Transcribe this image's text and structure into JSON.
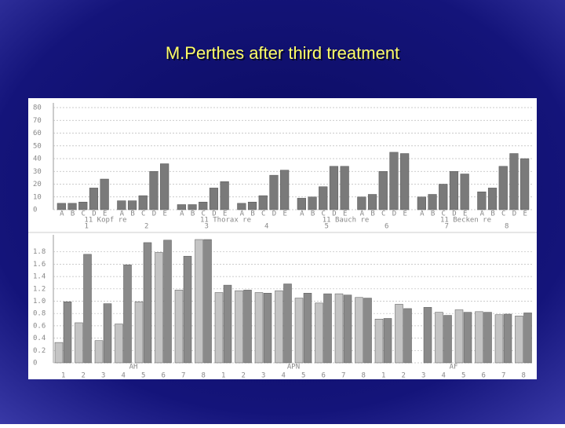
{
  "title": "M.Perthes after third treatment",
  "chart_data": [
    {
      "type": "bar",
      "bar_labels": [
        "A",
        "B",
        "C",
        "D",
        "E"
      ],
      "group_labels": [
        "1",
        "2",
        "3",
        "4",
        "5",
        "6",
        "7",
        "8"
      ],
      "region_labels": [
        "11 Kopf re",
        "11 Thorax re",
        "11 Bauch re",
        "11 Becken re"
      ],
      "color": "#7a7a7a",
      "values": [
        [
          5,
          5,
          6,
          17,
          24
        ],
        [
          7,
          7,
          11,
          30,
          36
        ],
        [
          4,
          4,
          6,
          17,
          22
        ],
        [
          5,
          6,
          11,
          27,
          31
        ],
        [
          9,
          10,
          18,
          34,
          34
        ],
        [
          10,
          12,
          30,
          45,
          44
        ],
        [
          10,
          12,
          20,
          30,
          28
        ],
        [
          14,
          17,
          34,
          44,
          40
        ]
      ],
      "ylim": [
        0,
        80
      ],
      "yticks": [
        0,
        10,
        20,
        30,
        40,
        50,
        60,
        70,
        80
      ],
      "grid": true
    },
    {
      "type": "bar",
      "categories": [
        "1",
        "2",
        "3",
        "4",
        "5",
        "6",
        "7",
        "8"
      ],
      "group_labels": [
        "AH",
        "APN",
        "AF"
      ],
      "series": [
        {
          "color": "#c4c4c4",
          "values": [
            [
              0.33,
              0.65,
              0.36,
              0.63,
              0.99,
              1.79,
              1.18,
              2.0
            ],
            [
              1.14,
              1.17,
              1.14,
              1.17,
              1.05,
              0.97,
              1.12,
              1.06
            ],
            [
              0.71,
              0.95,
              null,
              0.82,
              0.86,
              0.83,
              0.78,
              0.76
            ]
          ]
        },
        {
          "color": "#8a8a8a",
          "values": [
            [
              0.99,
              1.76,
              0.96,
              1.59,
              1.95,
              1.99,
              1.73,
              2.0
            ],
            [
              1.26,
              1.18,
              1.13,
              1.28,
              1.13,
              1.12,
              1.1,
              1.05
            ],
            [
              0.72,
              0.88,
              0.9,
              0.77,
              0.82,
              0.82,
              0.79,
              0.81
            ]
          ]
        }
      ],
      "ylim": [
        0,
        2
      ],
      "yticks": [
        0,
        0.2,
        0.4,
        0.6,
        0.8,
        {
          "value": 1,
          "label": "1.0"
        },
        1.2,
        1.4,
        1.6,
        1.8
      ],
      "grid": true
    }
  ]
}
